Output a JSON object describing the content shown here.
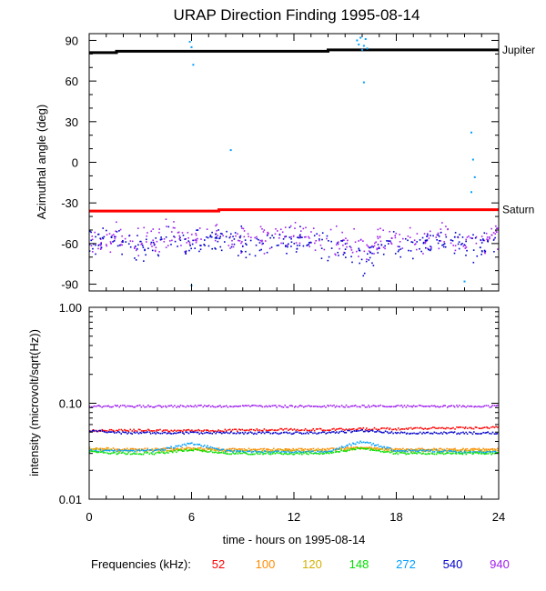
{
  "title": "URAP Direction Finding  1995-08-14",
  "xlabel": "time - hours on 1995-08-14",
  "freq_label": "Frequencies (kHz):",
  "frequencies": [
    {
      "label": "52",
      "color": "#ff0000"
    },
    {
      "label": "100",
      "color": "#ff8c00"
    },
    {
      "label": "120",
      "color": "#d4b000"
    },
    {
      "label": "148",
      "color": "#00e000"
    },
    {
      "label": "272",
      "color": "#00a0ff"
    },
    {
      "label": "540",
      "color": "#0000cc"
    },
    {
      "label": "940",
      "color": "#a020f0"
    }
  ],
  "chart_data": [
    {
      "type": "scatter",
      "title": "URAP Direction Finding  1995-08-14",
      "ylabel": "Azimuthal angle (deg)",
      "xlim": [
        0,
        24
      ],
      "ylim": [
        -95,
        95
      ],
      "xticks": [
        0,
        6,
        12,
        18,
        24
      ],
      "yticks": [
        90,
        60,
        30,
        0,
        -30,
        -60,
        -90
      ],
      "grid": false,
      "reference_lines": [
        {
          "name": "Jupiter",
          "color": "#000000",
          "x": [
            0,
            1.6,
            1.6,
            14,
            14,
            24
          ],
          "y": [
            81,
            81,
            82,
            82,
            83,
            83
          ]
        },
        {
          "name": "Saturn",
          "color": "#ff0000",
          "x": [
            0,
            7.6,
            7.6,
            24
          ],
          "y": [
            -36,
            -36,
            -35,
            -35
          ]
        }
      ],
      "series": [
        {
          "name": "940",
          "color": "#a020f0",
          "x": [
            0.2,
            1.5,
            3.0,
            4.5,
            6.0,
            7.5,
            9.0,
            10.5,
            12.0,
            13.5,
            15.0,
            16.0,
            17.5,
            19.0,
            20.5,
            22.0,
            23.5
          ],
          "y": [
            -58,
            -55,
            -60,
            -54,
            -57,
            -53,
            -58,
            -56,
            -54,
            -57,
            -60,
            -64,
            -56,
            -58,
            -55,
            -59,
            -55
          ]
        },
        {
          "name": "540",
          "color": "#0000cc",
          "x": [
            0.3,
            1.8,
            3.3,
            4.8,
            6.3,
            7.8,
            9.3,
            10.8,
            12.3,
            13.8,
            15.3,
            15.9,
            17.8,
            19.3,
            20.8,
            22.3,
            23.7
          ],
          "y": [
            -60,
            -57,
            -63,
            -58,
            -60,
            -56,
            -61,
            -58,
            -57,
            -60,
            -64,
            -72,
            -59,
            -61,
            -58,
            -62,
            -57
          ]
        },
        {
          "name": "272",
          "color": "#00a0ff",
          "x": [
            5.9,
            6.0,
            6.1,
            8.3,
            15.7,
            15.8,
            15.9,
            16.0,
            16.1,
            16.2,
            16.3,
            16.1,
            22.4,
            22.5,
            22.6,
            22.4,
            22.0,
            6.0
          ],
          "y": [
            89,
            85,
            72,
            9,
            90,
            87,
            92,
            83,
            86,
            91,
            84,
            59,
            22,
            2,
            -11,
            -22,
            -88,
            -91
          ]
        }
      ]
    },
    {
      "type": "scatter",
      "ylabel": "intensity (microvolt/sqrt(Hz))",
      "yscale": "log",
      "xlim": [
        0,
        24
      ],
      "ylim": [
        0.01,
        1.0
      ],
      "xticks": [
        0,
        6,
        12,
        18,
        24
      ],
      "yticks": [
        1.0,
        0.1,
        0.01
      ],
      "ytick_labels": [
        "1.00",
        "0.10",
        "0.01"
      ],
      "grid": false,
      "x": [
        0,
        2,
        4,
        6,
        8,
        10,
        12,
        14,
        16,
        18,
        20,
        22,
        24
      ],
      "series": [
        {
          "name": "940",
          "color": "#a020f0",
          "values": [
            0.093,
            0.093,
            0.093,
            0.093,
            0.093,
            0.093,
            0.093,
            0.093,
            0.093,
            0.093,
            0.093,
            0.093,
            0.093
          ]
        },
        {
          "name": "52",
          "color": "#ff0000",
          "values": [
            0.052,
            0.052,
            0.052,
            0.052,
            0.052,
            0.053,
            0.053,
            0.053,
            0.054,
            0.054,
            0.055,
            0.055,
            0.056
          ]
        },
        {
          "name": "540",
          "color": "#0000cc",
          "values": [
            0.052,
            0.049,
            0.049,
            0.049,
            0.049,
            0.049,
            0.049,
            0.049,
            0.052,
            0.049,
            0.049,
            0.049,
            0.049
          ]
        },
        {
          "name": "100",
          "color": "#ff8c00",
          "values": [
            0.034,
            0.033,
            0.033,
            0.034,
            0.033,
            0.033,
            0.033,
            0.033,
            0.035,
            0.033,
            0.033,
            0.033,
            0.033
          ]
        },
        {
          "name": "120",
          "color": "#d4b000",
          "values": [
            0.033,
            0.032,
            0.032,
            0.033,
            0.032,
            0.032,
            0.032,
            0.032,
            0.034,
            0.032,
            0.032,
            0.032,
            0.032
          ]
        },
        {
          "name": "272",
          "color": "#00a0ff",
          "values": [
            0.032,
            0.032,
            0.032,
            0.038,
            0.032,
            0.031,
            0.031,
            0.031,
            0.04,
            0.032,
            0.032,
            0.031,
            0.031
          ]
        },
        {
          "name": "148",
          "color": "#00e000",
          "values": [
            0.031,
            0.03,
            0.03,
            0.033,
            0.03,
            0.03,
            0.03,
            0.03,
            0.034,
            0.03,
            0.03,
            0.03,
            0.03
          ]
        }
      ]
    }
  ]
}
